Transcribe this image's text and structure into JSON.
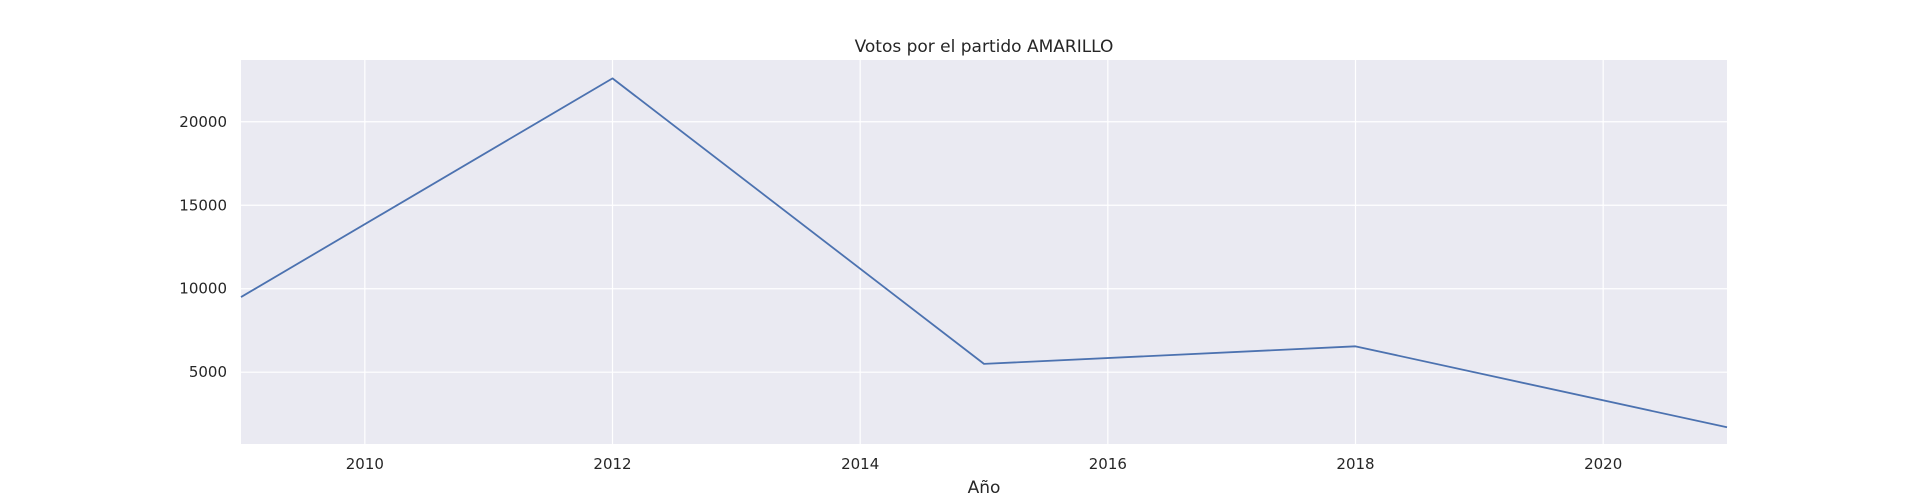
{
  "chart_data": {
    "type": "line",
    "title": "Votos por el partido AMARILLO",
    "xlabel": "Año",
    "ylabel": "",
    "xlim": [
      2009,
      2021
    ],
    "ylim": [
      700,
      23700
    ],
    "xticks": [
      2010,
      2012,
      2014,
      2016,
      2018,
      2020
    ],
    "yticks": [
      5000,
      10000,
      15000,
      20000
    ],
    "grid": true,
    "legend": "none",
    "colors": {
      "background": "#eaeaf2",
      "grid": "#ffffff",
      "line": "#4c72b0",
      "text": "#262626"
    },
    "series": [
      {
        "x": [
          2009,
          2012,
          2015,
          2018,
          2021
        ],
        "y": [
          9500,
          22600,
          5500,
          6550,
          1700
        ]
      }
    ]
  }
}
